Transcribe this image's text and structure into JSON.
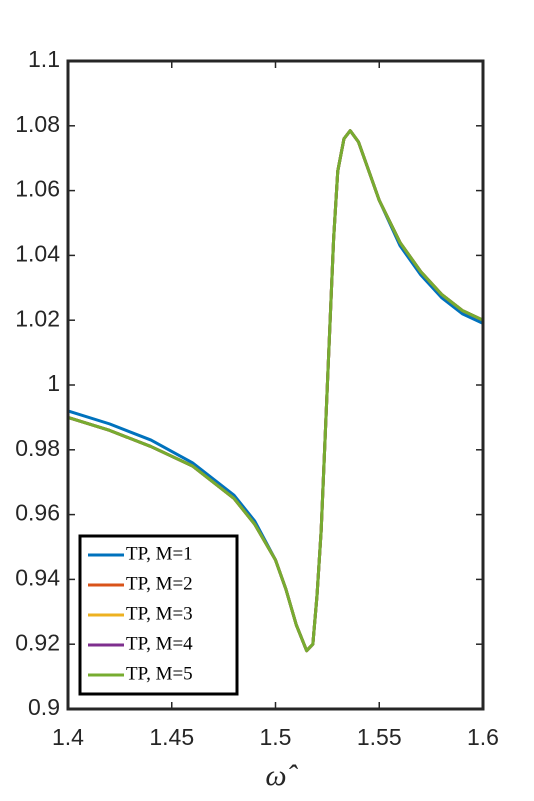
{
  "chart_data": {
    "type": "line",
    "xlabel": "ω̂",
    "x": [
      1.4,
      1.42,
      1.44,
      1.46,
      1.48,
      1.49,
      1.5,
      1.505,
      1.51,
      1.515,
      1.518,
      1.52,
      1.522,
      1.525,
      1.528,
      1.53,
      1.533,
      1.536,
      1.54,
      1.545,
      1.55,
      1.56,
      1.57,
      1.58,
      1.59,
      1.6
    ],
    "series": [
      {
        "name": "TP, M=1",
        "color": "#0072BD",
        "values": [
          0.992,
          0.988,
          0.983,
          0.976,
          0.966,
          0.958,
          0.946,
          0.937,
          0.926,
          0.918,
          0.92,
          0.935,
          0.955,
          1.0,
          1.045,
          1.066,
          1.076,
          1.0785,
          1.075,
          1.066,
          1.057,
          1.043,
          1.034,
          1.027,
          1.022,
          1.019
        ]
      },
      {
        "name": "TP, M=2",
        "color": "#D95319",
        "values": [
          0.99,
          0.986,
          0.981,
          0.975,
          0.965,
          0.957,
          0.946,
          0.937,
          0.926,
          0.918,
          0.92,
          0.935,
          0.955,
          1.0,
          1.045,
          1.066,
          1.076,
          1.0785,
          1.075,
          1.066,
          1.057,
          1.044,
          1.035,
          1.028,
          1.023,
          1.02
        ]
      },
      {
        "name": "TP, M=3",
        "color": "#EDB120",
        "values": [
          0.99,
          0.986,
          0.981,
          0.975,
          0.965,
          0.957,
          0.946,
          0.937,
          0.926,
          0.918,
          0.92,
          0.935,
          0.955,
          1.0,
          1.045,
          1.066,
          1.076,
          1.0785,
          1.075,
          1.066,
          1.057,
          1.044,
          1.035,
          1.028,
          1.023,
          1.02
        ]
      },
      {
        "name": "TP, M=4",
        "color": "#7E2F8E",
        "values": [
          0.99,
          0.986,
          0.981,
          0.975,
          0.965,
          0.957,
          0.946,
          0.937,
          0.926,
          0.918,
          0.92,
          0.935,
          0.955,
          1.0,
          1.045,
          1.066,
          1.076,
          1.0785,
          1.075,
          1.066,
          1.057,
          1.044,
          1.035,
          1.028,
          1.023,
          1.02
        ]
      },
      {
        "name": "TP, M=5",
        "color": "#77AC30",
        "values": [
          0.99,
          0.986,
          0.981,
          0.975,
          0.965,
          0.957,
          0.946,
          0.937,
          0.926,
          0.918,
          0.92,
          0.935,
          0.955,
          1.0,
          1.045,
          1.066,
          1.076,
          1.0785,
          1.075,
          1.066,
          1.057,
          1.044,
          1.035,
          1.028,
          1.023,
          1.02
        ]
      }
    ],
    "xlim": [
      1.4,
      1.6
    ],
    "xticks": [
      1.4,
      1.45,
      1.5,
      1.55,
      1.6
    ],
    "ylim": [
      0.9,
      1.1
    ],
    "yticks": [
      0.9,
      0.92,
      0.94,
      0.96,
      0.98,
      1,
      1.02,
      1.04,
      1.06,
      1.08,
      1.1
    ],
    "legend": "lower left",
    "grid": false
  }
}
